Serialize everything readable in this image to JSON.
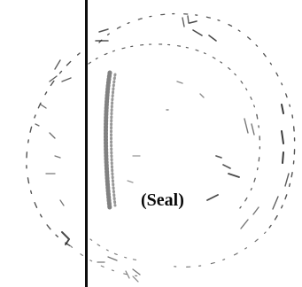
{
  "seal": {
    "label": "(Seal)",
    "ink_color": "#1a1a1a"
  },
  "rule_color": "#0d0d0d"
}
